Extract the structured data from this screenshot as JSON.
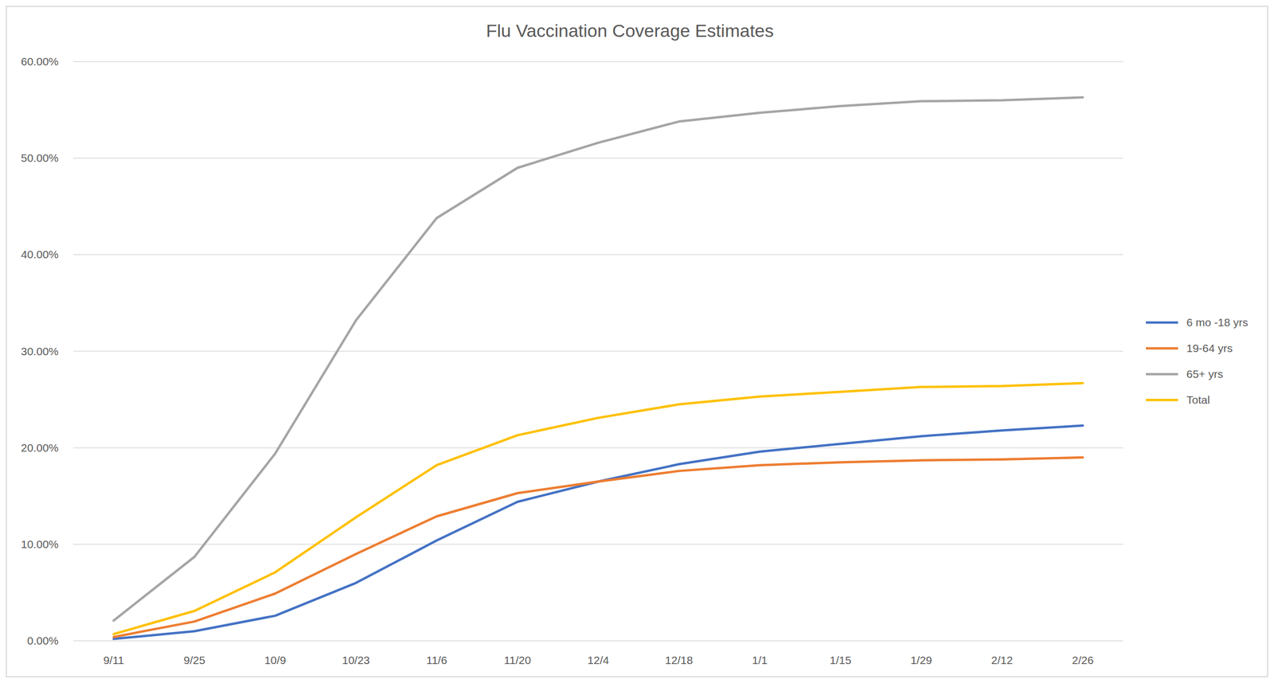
{
  "chart_data": {
    "type": "line",
    "title": "Flu Vaccination Coverage Estimates",
    "categories": [
      "9/11",
      "9/25",
      "10/9",
      "10/23",
      "11/6",
      "11/20",
      "12/4",
      "12/18",
      "1/1",
      "1/15",
      "1/29",
      "2/12",
      "2/26"
    ],
    "series": [
      {
        "name": "6 mo -18 yrs",
        "color": "#4472c4",
        "values": [
          0.2,
          1.0,
          2.6,
          6.0,
          10.4,
          14.4,
          16.5,
          18.3,
          19.6,
          20.4,
          21.2,
          21.8,
          22.3
        ]
      },
      {
        "name": "19-64 yrs",
        "color": "#ed7d31",
        "values": [
          0.4,
          2.0,
          4.9,
          9.0,
          12.9,
          15.3,
          16.5,
          17.6,
          18.2,
          18.5,
          18.7,
          18.8,
          19.0
        ]
      },
      {
        "name": "65+ yrs",
        "color": "#a5a5a5",
        "values": [
          2.1,
          8.7,
          19.4,
          33.2,
          43.8,
          49.0,
          51.6,
          53.8,
          54.7,
          55.4,
          55.9,
          56.0,
          56.3
        ]
      },
      {
        "name": "Total",
        "color": "#ffc000",
        "values": [
          0.7,
          3.1,
          7.1,
          12.8,
          18.2,
          21.3,
          23.1,
          24.5,
          25.3,
          25.8,
          26.3,
          26.4,
          26.7
        ]
      }
    ],
    "ylim": [
      0,
      60
    ],
    "yticks": [
      {
        "value": 0,
        "label": "0.00%"
      },
      {
        "value": 10,
        "label": "10.00%"
      },
      {
        "value": 20,
        "label": "20.00%"
      },
      {
        "value": 30,
        "label": "30.00%"
      },
      {
        "value": 40,
        "label": "40.00%"
      },
      {
        "value": 50,
        "label": "50.00%"
      },
      {
        "value": 60,
        "label": "60.00%"
      }
    ],
    "grid": true,
    "legend": "right"
  }
}
